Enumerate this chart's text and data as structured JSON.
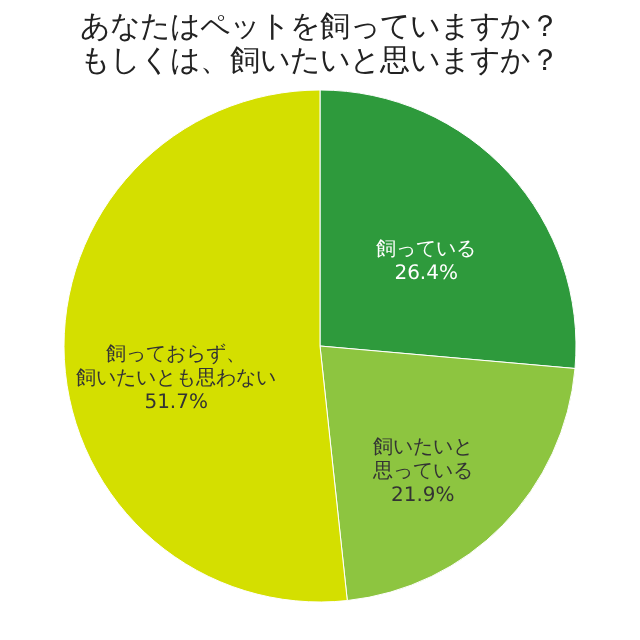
{
  "chart_data": {
    "type": "pie",
    "title": [
      "あなたはペットを飼っていますか？",
      "もしくは、飼いたいと思いますか？"
    ],
    "categories": [
      "飼っている",
      "飼いたいと思っている",
      "飼っておらず、飼いたいとも思わない"
    ],
    "values": [
      26.4,
      21.9,
      51.7
    ],
    "value_labels": [
      "26.4%",
      "21.9%",
      "51.7%"
    ],
    "colors": [
      "#2e9a3c",
      "#8dc540",
      "#d4df00"
    ],
    "legend": false
  }
}
